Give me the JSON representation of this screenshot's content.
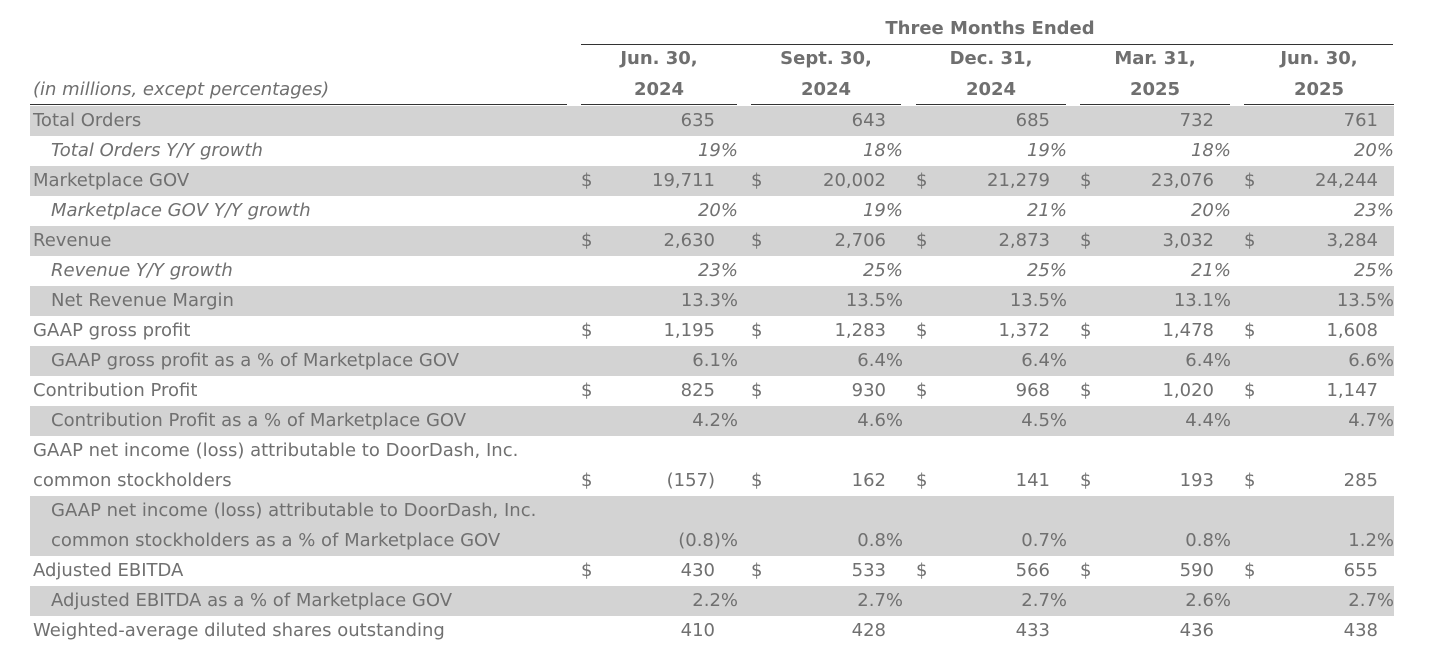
{
  "header": {
    "group_title": "Three Months Ended",
    "units_note": "(in millions, except percentages)",
    "periods": [
      {
        "line1": "Jun. 30,",
        "line2": "2024"
      },
      {
        "line1": "Sept. 30,",
        "line2": "2024"
      },
      {
        "line1": "Dec. 31,",
        "line2": "2024"
      },
      {
        "line1": "Mar. 31,",
        "line2": "2025"
      },
      {
        "line1": "Jun. 30,",
        "line2": "2025"
      }
    ]
  },
  "rows": [
    {
      "label": "Total Orders",
      "values": [
        "635",
        "643",
        "685",
        "732",
        "761"
      ]
    },
    {
      "label": "Total Orders Y/Y growth",
      "values": [
        "19%",
        "18%",
        "19%",
        "18%",
        "20%"
      ]
    },
    {
      "label": "Marketplace GOV",
      "currency": "$",
      "values": [
        "19,711",
        "20,002",
        "21,279",
        "23,076",
        "24,244"
      ]
    },
    {
      "label": "Marketplace GOV Y/Y growth",
      "values": [
        "20%",
        "19%",
        "21%",
        "20%",
        "23%"
      ]
    },
    {
      "label": "Revenue",
      "currency": "$",
      "values": [
        "2,630",
        "2,706",
        "2,873",
        "3,032",
        "3,284"
      ]
    },
    {
      "label": "Revenue Y/Y growth",
      "values": [
        "23%",
        "25%",
        "25%",
        "21%",
        "25%"
      ]
    },
    {
      "label": "Net Revenue Margin",
      "values": [
        "13.3%",
        "13.5%",
        "13.5%",
        "13.1%",
        "13.5%"
      ]
    },
    {
      "label": "GAAP gross profit",
      "currency": "$",
      "values": [
        "1,195",
        "1,283",
        "1,372",
        "1,478",
        "1,608"
      ]
    },
    {
      "label": "GAAP gross profit as a % of Marketplace GOV",
      "values": [
        "6.1%",
        "6.4%",
        "6.4%",
        "6.4%",
        "6.6%"
      ]
    },
    {
      "label": "Contribution Profit",
      "currency": "$",
      "values": [
        "825",
        "930",
        "968",
        "1,020",
        "1,147"
      ]
    },
    {
      "label": "Contribution Profit as a % of Marketplace GOV",
      "values": [
        "4.2%",
        "4.6%",
        "4.5%",
        "4.4%",
        "4.7%"
      ]
    },
    {
      "label_line1": "GAAP net income (loss) attributable to DoorDash, Inc.",
      "label_line2": "common stockholders",
      "currency": "$",
      "values": [
        "(157)",
        "162",
        "141",
        "193",
        "285"
      ]
    },
    {
      "label_line1": "GAAP net income (loss) attributable to DoorDash, Inc.",
      "label_line2": "common stockholders as a % of Marketplace GOV",
      "values": [
        "(0.8)%",
        "0.8%",
        "0.7%",
        "0.8%",
        "1.2%"
      ]
    },
    {
      "label": "Adjusted EBITDA",
      "currency": "$",
      "values": [
        "430",
        "533",
        "566",
        "590",
        "655"
      ]
    },
    {
      "label": "Adjusted EBITDA as a % of Marketplace GOV",
      "values": [
        "2.2%",
        "2.7%",
        "2.7%",
        "2.6%",
        "2.7%"
      ]
    },
    {
      "label": "Weighted-average diluted shares outstanding",
      "values": [
        "410",
        "428",
        "433",
        "436",
        "438"
      ]
    }
  ]
}
